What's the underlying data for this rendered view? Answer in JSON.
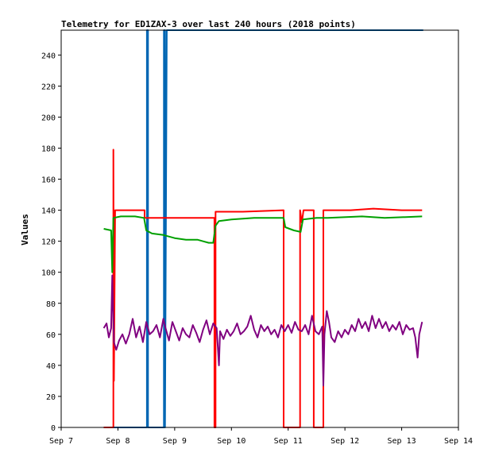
{
  "chart_data": {
    "type": "line",
    "title": "Telemetry for ED1ZAX-3 over last 240 hours (2018 points)",
    "xlabel": "",
    "ylabel": "Values",
    "x_ticks": [
      "Sep 7",
      "Sep 8",
      "Sep 9",
      "Sep 10",
      "Sep 11",
      "Sep 12",
      "Sep 13",
      "Sep 14"
    ],
    "xlim": [
      0,
      7
    ],
    "ylim": [
      0,
      256
    ],
    "y_ticks": [
      0,
      20,
      40,
      60,
      80,
      100,
      120,
      140,
      160,
      180,
      200,
      220,
      240
    ],
    "grid": false,
    "legend": "none",
    "series": [
      {
        "color": "#0066b3",
        "points": [
          [
            0.75,
            0
          ],
          [
            1.51,
            0
          ],
          [
            1.51,
            256
          ],
          [
            1.53,
            256
          ],
          [
            1.53,
            0
          ],
          [
            1.81,
            0
          ],
          [
            1.81,
            256
          ],
          [
            1.83,
            256
          ],
          [
            1.83,
            0
          ],
          [
            1.86,
            256
          ],
          [
            6.38,
            256
          ]
        ]
      },
      {
        "color": "#ff0000",
        "points": [
          [
            0.75,
            0
          ],
          [
            0.92,
            0
          ],
          [
            0.92,
            179
          ],
          [
            0.93,
            30
          ],
          [
            0.95,
            140
          ],
          [
            1.47,
            140
          ],
          [
            1.47,
            135
          ],
          [
            1.51,
            135
          ],
          [
            1.81,
            135
          ],
          [
            2.7,
            135
          ],
          [
            2.7,
            0
          ],
          [
            2.72,
            0
          ],
          [
            2.72,
            139
          ],
          [
            3.2,
            139
          ],
          [
            3.92,
            140
          ],
          [
            3.92,
            0
          ],
          [
            4.21,
            0
          ],
          [
            4.21,
            140
          ],
          [
            4.24,
            132
          ],
          [
            4.27,
            140
          ],
          [
            4.45,
            140
          ],
          [
            4.45,
            0
          ],
          [
            4.62,
            0
          ],
          [
            4.62,
            140
          ],
          [
            4.62,
            0
          ],
          [
            4.62,
            140
          ],
          [
            5.1,
            140
          ],
          [
            5.5,
            141
          ],
          [
            6.0,
            140
          ],
          [
            6.36,
            140
          ]
        ]
      },
      {
        "color": "#00a000",
        "points": [
          [
            0.75,
            128
          ],
          [
            0.88,
            127
          ],
          [
            0.9,
            100
          ],
          [
            0.92,
            135
          ],
          [
            1.05,
            136
          ],
          [
            1.3,
            136
          ],
          [
            1.46,
            135
          ],
          [
            1.5,
            127
          ],
          [
            1.6,
            125
          ],
          [
            1.8,
            124
          ],
          [
            2.0,
            122
          ],
          [
            2.2,
            121
          ],
          [
            2.4,
            121
          ],
          [
            2.6,
            119
          ],
          [
            2.68,
            119
          ],
          [
            2.72,
            130
          ],
          [
            2.78,
            133
          ],
          [
            3.0,
            134
          ],
          [
            3.4,
            135
          ],
          [
            3.92,
            135
          ],
          [
            3.95,
            129
          ],
          [
            4.1,
            127
          ],
          [
            4.22,
            126
          ],
          [
            4.26,
            134
          ],
          [
            4.5,
            135
          ],
          [
            4.7,
            135
          ],
          [
            5.3,
            136
          ],
          [
            5.7,
            135
          ],
          [
            6.36,
            136
          ]
        ]
      },
      {
        "color": "#800080",
        "points": [
          [
            0.75,
            64
          ],
          [
            0.8,
            67
          ],
          [
            0.84,
            58
          ],
          [
            0.88,
            64
          ],
          [
            0.9,
            98
          ],
          [
            0.93,
            55
          ],
          [
            0.97,
            50
          ],
          [
            1.02,
            56
          ],
          [
            1.08,
            60
          ],
          [
            1.14,
            54
          ],
          [
            1.2,
            60
          ],
          [
            1.26,
            70
          ],
          [
            1.32,
            58
          ],
          [
            1.38,
            65
          ],
          [
            1.44,
            55
          ],
          [
            1.5,
            68
          ],
          [
            1.56,
            60
          ],
          [
            1.62,
            62
          ],
          [
            1.68,
            66
          ],
          [
            1.74,
            58
          ],
          [
            1.8,
            70
          ],
          [
            1.84,
            64
          ],
          [
            1.9,
            56
          ],
          [
            1.96,
            68
          ],
          [
            2.02,
            62
          ],
          [
            2.08,
            56
          ],
          [
            2.14,
            64
          ],
          [
            2.2,
            60
          ],
          [
            2.26,
            58
          ],
          [
            2.32,
            66
          ],
          [
            2.38,
            61
          ],
          [
            2.44,
            55
          ],
          [
            2.5,
            63
          ],
          [
            2.56,
            69
          ],
          [
            2.62,
            60
          ],
          [
            2.68,
            67
          ],
          [
            2.74,
            64
          ],
          [
            2.78,
            40
          ],
          [
            2.8,
            62
          ],
          [
            2.86,
            57
          ],
          [
            2.92,
            63
          ],
          [
            2.98,
            59
          ],
          [
            3.04,
            62
          ],
          [
            3.1,
            67
          ],
          [
            3.16,
            60
          ],
          [
            3.22,
            62
          ],
          [
            3.28,
            65
          ],
          [
            3.34,
            72
          ],
          [
            3.4,
            63
          ],
          [
            3.46,
            58
          ],
          [
            3.52,
            66
          ],
          [
            3.58,
            62
          ],
          [
            3.64,
            65
          ],
          [
            3.7,
            60
          ],
          [
            3.76,
            63
          ],
          [
            3.82,
            58
          ],
          [
            3.88,
            66
          ],
          [
            3.94,
            62
          ],
          [
            4.0,
            66
          ],
          [
            4.06,
            61
          ],
          [
            4.12,
            68
          ],
          [
            4.18,
            63
          ],
          [
            4.24,
            62
          ],
          [
            4.3,
            66
          ],
          [
            4.36,
            60
          ],
          [
            4.42,
            72
          ],
          [
            4.48,
            62
          ],
          [
            4.54,
            60
          ],
          [
            4.6,
            65
          ],
          [
            4.62,
            27
          ],
          [
            4.64,
            60
          ],
          [
            4.68,
            75
          ],
          [
            4.72,
            68
          ],
          [
            4.76,
            58
          ],
          [
            4.82,
            55
          ],
          [
            4.88,
            62
          ],
          [
            4.94,
            58
          ],
          [
            5.0,
            63
          ],
          [
            5.06,
            60
          ],
          [
            5.12,
            66
          ],
          [
            5.18,
            62
          ],
          [
            5.24,
            70
          ],
          [
            5.3,
            64
          ],
          [
            5.36,
            68
          ],
          [
            5.42,
            62
          ],
          [
            5.48,
            72
          ],
          [
            5.54,
            64
          ],
          [
            5.6,
            70
          ],
          [
            5.66,
            64
          ],
          [
            5.72,
            68
          ],
          [
            5.78,
            62
          ],
          [
            5.84,
            66
          ],
          [
            5.9,
            63
          ],
          [
            5.96,
            68
          ],
          [
            6.02,
            60
          ],
          [
            6.08,
            66
          ],
          [
            6.14,
            63
          ],
          [
            6.2,
            64
          ],
          [
            6.24,
            58
          ],
          [
            6.28,
            45
          ],
          [
            6.31,
            60
          ],
          [
            6.36,
            68
          ]
        ]
      }
    ]
  }
}
